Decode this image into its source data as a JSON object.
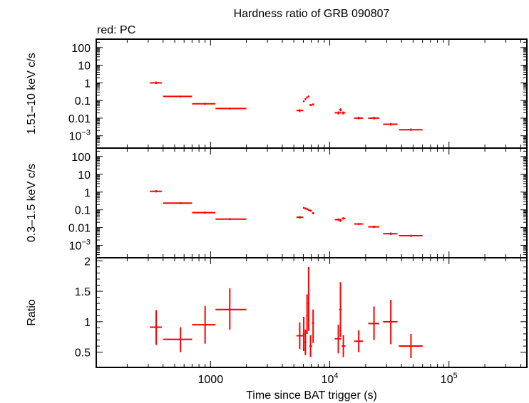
{
  "chart_data": {
    "type": "scatter",
    "title": "Hardness ratio of GRB 090807",
    "subtitle": "red: PC",
    "xlabel": "Time since BAT trigger (s)",
    "xscale": "log",
    "xlim": [
      110,
      450000
    ],
    "x_ticks": [
      {
        "v": 1000,
        "label": "1000",
        "sup": ""
      },
      {
        "v": 10000,
        "label": "10",
        "sup": "4"
      },
      {
        "v": 100000,
        "label": "10",
        "sup": "5"
      }
    ],
    "series_color": "#ff0000",
    "panels": [
      {
        "id": "hard",
        "ylabel": "1.51–10 keV c/s",
        "yscale": "log",
        "ylim": [
          0.0002,
          300
        ],
        "y_ticks": [
          {
            "v": 100,
            "label": "100",
            "sup": ""
          },
          {
            "v": 10,
            "label": "10",
            "sup": ""
          },
          {
            "v": 1,
            "label": "1",
            "sup": ""
          },
          {
            "v": 0.1,
            "label": "0.1",
            "sup": ""
          },
          {
            "v": 0.01,
            "label": "0.01",
            "sup": ""
          },
          {
            "v": 0.001,
            "label": "10",
            "sup": "−3"
          }
        ],
        "points": [
          {
            "x": 350,
            "xlo": 310,
            "xhi": 390,
            "y": 1.0,
            "ylo": 0.85,
            "yhi": 1.18
          },
          {
            "x": 560,
            "xlo": 400,
            "xhi": 700,
            "y": 0.17,
            "ylo": 0.15,
            "yhi": 0.19
          },
          {
            "x": 900,
            "xlo": 700,
            "xhi": 1100,
            "y": 0.065,
            "ylo": 0.056,
            "yhi": 0.075
          },
          {
            "x": 1450,
            "xlo": 1100,
            "xhi": 2000,
            "y": 0.035,
            "ylo": 0.031,
            "yhi": 0.04
          },
          {
            "x": 5600,
            "xlo": 5250,
            "xhi": 6000,
            "y": 0.027,
            "ylo": 0.022,
            "yhi": 0.032
          },
          {
            "x": 6050,
            "xlo": 5950,
            "xhi": 6150,
            "y": 0.09,
            "ylo": 0.08,
            "yhi": 0.1
          },
          {
            "x": 6250,
            "xlo": 6150,
            "xhi": 6350,
            "y": 0.12,
            "ylo": 0.105,
            "yhi": 0.135
          },
          {
            "x": 6450,
            "xlo": 6350,
            "xhi": 6550,
            "y": 0.15,
            "ylo": 0.13,
            "yhi": 0.17
          },
          {
            "x": 6650,
            "xlo": 6550,
            "xhi": 6750,
            "y": 0.17,
            "ylo": 0.15,
            "yhi": 0.19
          },
          {
            "x": 6900,
            "xlo": 6750,
            "xhi": 7100,
            "y": 0.055,
            "ylo": 0.048,
            "yhi": 0.063
          },
          {
            "x": 7250,
            "xlo": 7100,
            "xhi": 7400,
            "y": 0.06,
            "ylo": 0.052,
            "yhi": 0.068
          },
          {
            "x": 11800,
            "xlo": 11000,
            "xhi": 12500,
            "y": 0.02,
            "ylo": 0.016,
            "yhi": 0.024
          },
          {
            "x": 12300,
            "xlo": 12000,
            "xhi": 12600,
            "y": 0.03,
            "ylo": 0.024,
            "yhi": 0.036
          },
          {
            "x": 13000,
            "xlo": 12600,
            "xhi": 13500,
            "y": 0.02,
            "ylo": 0.016,
            "yhi": 0.024
          },
          {
            "x": 17500,
            "xlo": 16000,
            "xhi": 19000,
            "y": 0.01,
            "ylo": 0.0085,
            "yhi": 0.012
          },
          {
            "x": 23500,
            "xlo": 21000,
            "xhi": 26000,
            "y": 0.01,
            "ylo": 0.0085,
            "yhi": 0.012
          },
          {
            "x": 32500,
            "xlo": 28000,
            "xhi": 37000,
            "y": 0.0045,
            "ylo": 0.0038,
            "yhi": 0.0053
          },
          {
            "x": 48000,
            "xlo": 38000,
            "xhi": 60000,
            "y": 0.0022,
            "ylo": 0.0019,
            "yhi": 0.0026
          }
        ]
      },
      {
        "id": "soft",
        "ylabel": "0.3–1.5 keV c/s",
        "yscale": "log",
        "ylim": [
          0.0002,
          300
        ],
        "y_ticks": [
          {
            "v": 100,
            "label": "100",
            "sup": ""
          },
          {
            "v": 10,
            "label": "10",
            "sup": ""
          },
          {
            "v": 1,
            "label": "1",
            "sup": ""
          },
          {
            "v": 0.1,
            "label": "0.1",
            "sup": ""
          },
          {
            "v": 0.01,
            "label": "0.01",
            "sup": ""
          },
          {
            "v": 0.001,
            "label": "10",
            "sup": "−3"
          }
        ],
        "points": [
          {
            "x": 350,
            "xlo": 310,
            "xhi": 390,
            "y": 1.1,
            "ylo": 0.95,
            "yhi": 1.28
          },
          {
            "x": 560,
            "xlo": 400,
            "xhi": 700,
            "y": 0.24,
            "ylo": 0.21,
            "yhi": 0.27
          },
          {
            "x": 900,
            "xlo": 700,
            "xhi": 1100,
            "y": 0.07,
            "ylo": 0.061,
            "yhi": 0.08
          },
          {
            "x": 1450,
            "xlo": 1100,
            "xhi": 2000,
            "y": 0.03,
            "ylo": 0.026,
            "yhi": 0.034
          },
          {
            "x": 5600,
            "xlo": 5250,
            "xhi": 6000,
            "y": 0.038,
            "ylo": 0.032,
            "yhi": 0.045
          },
          {
            "x": 6050,
            "xlo": 5950,
            "xhi": 6150,
            "y": 0.13,
            "ylo": 0.115,
            "yhi": 0.145
          },
          {
            "x": 6250,
            "xlo": 6150,
            "xhi": 6350,
            "y": 0.12,
            "ylo": 0.105,
            "yhi": 0.135
          },
          {
            "x": 6450,
            "xlo": 6350,
            "xhi": 6550,
            "y": 0.11,
            "ylo": 0.097,
            "yhi": 0.125
          },
          {
            "x": 6650,
            "xlo": 6550,
            "xhi": 6750,
            "y": 0.1,
            "ylo": 0.088,
            "yhi": 0.113
          },
          {
            "x": 6900,
            "xlo": 6750,
            "xhi": 7100,
            "y": 0.09,
            "ylo": 0.079,
            "yhi": 0.102
          },
          {
            "x": 7250,
            "xlo": 7100,
            "xhi": 7400,
            "y": 0.065,
            "ylo": 0.057,
            "yhi": 0.074
          },
          {
            "x": 11800,
            "xlo": 11000,
            "xhi": 12500,
            "y": 0.028,
            "ylo": 0.024,
            "yhi": 0.033
          },
          {
            "x": 12300,
            "xlo": 12000,
            "xhi": 12600,
            "y": 0.025,
            "ylo": 0.021,
            "yhi": 0.03
          },
          {
            "x": 13000,
            "xlo": 12600,
            "xhi": 13500,
            "y": 0.033,
            "ylo": 0.028,
            "yhi": 0.038
          },
          {
            "x": 17500,
            "xlo": 16000,
            "xhi": 19000,
            "y": 0.016,
            "ylo": 0.014,
            "yhi": 0.018
          },
          {
            "x": 23500,
            "xlo": 21000,
            "xhi": 26000,
            "y": 0.011,
            "ylo": 0.0095,
            "yhi": 0.013
          },
          {
            "x": 32500,
            "xlo": 28000,
            "xhi": 37000,
            "y": 0.0045,
            "ylo": 0.0038,
            "yhi": 0.0053
          },
          {
            "x": 48000,
            "xlo": 38000,
            "xhi": 60000,
            "y": 0.0035,
            "ylo": 0.003,
            "yhi": 0.004
          }
        ]
      },
      {
        "id": "ratio",
        "ylabel": "Ratio",
        "yscale": "linear",
        "ylim": [
          0.25,
          2.05
        ],
        "y_ticks": [
          {
            "v": 2,
            "label": "2",
            "sup": ""
          },
          {
            "v": 1.5,
            "label": "1.5",
            "sup": ""
          },
          {
            "v": 1,
            "label": "1",
            "sup": ""
          },
          {
            "v": 0.5,
            "label": "0.5",
            "sup": ""
          }
        ],
        "points": [
          {
            "x": 350,
            "xlo": 310,
            "xhi": 390,
            "y": 0.91,
            "ylo": 0.62,
            "yhi": 1.19
          },
          {
            "x": 560,
            "xlo": 400,
            "xhi": 700,
            "y": 0.71,
            "ylo": 0.5,
            "yhi": 0.91
          },
          {
            "x": 900,
            "xlo": 700,
            "xhi": 1100,
            "y": 0.95,
            "ylo": 0.64,
            "yhi": 1.26
          },
          {
            "x": 1450,
            "xlo": 1100,
            "xhi": 2000,
            "y": 1.2,
            "ylo": 0.87,
            "yhi": 1.55
          },
          {
            "x": 5600,
            "xlo": 5250,
            "xhi": 6000,
            "y": 0.77,
            "ylo": 0.55,
            "yhi": 0.99
          },
          {
            "x": 6050,
            "xlo": 5950,
            "xhi": 6150,
            "y": 0.8,
            "ylo": 0.52,
            "yhi": 1.08
          },
          {
            "x": 6250,
            "xlo": 6150,
            "xhi": 6350,
            "y": 0.66,
            "ylo": 0.45,
            "yhi": 0.87
          },
          {
            "x": 6450,
            "xlo": 6350,
            "xhi": 6550,
            "y": 1.1,
            "ylo": 0.8,
            "yhi": 1.45
          },
          {
            "x": 6650,
            "xlo": 6550,
            "xhi": 6750,
            "y": 1.3,
            "ylo": 0.85,
            "yhi": 1.9
          },
          {
            "x": 6900,
            "xlo": 6750,
            "xhi": 7100,
            "y": 0.6,
            "ylo": 0.42,
            "yhi": 0.78
          },
          {
            "x": 7250,
            "xlo": 7100,
            "xhi": 7400,
            "y": 0.98,
            "ylo": 0.65,
            "yhi": 1.2
          },
          {
            "x": 11800,
            "xlo": 11000,
            "xhi": 12500,
            "y": 0.72,
            "ylo": 0.48,
            "yhi": 0.95
          },
          {
            "x": 12300,
            "xlo": 12000,
            "xhi": 12600,
            "y": 1.2,
            "ylo": 0.75,
            "yhi": 1.65
          },
          {
            "x": 13000,
            "xlo": 12600,
            "xhi": 13500,
            "y": 0.6,
            "ylo": 0.42,
            "yhi": 0.78
          },
          {
            "x": 17500,
            "xlo": 16000,
            "xhi": 19000,
            "y": 0.68,
            "ylo": 0.5,
            "yhi": 0.86
          },
          {
            "x": 23500,
            "xlo": 21000,
            "xhi": 26000,
            "y": 0.97,
            "ylo": 0.7,
            "yhi": 1.25
          },
          {
            "x": 32500,
            "xlo": 28000,
            "xhi": 37000,
            "y": 1.0,
            "ylo": 0.63,
            "yhi": 1.36
          },
          {
            "x": 48000,
            "xlo": 38000,
            "xhi": 60000,
            "y": 0.6,
            "ylo": 0.4,
            "yhi": 0.8
          }
        ]
      }
    ]
  }
}
